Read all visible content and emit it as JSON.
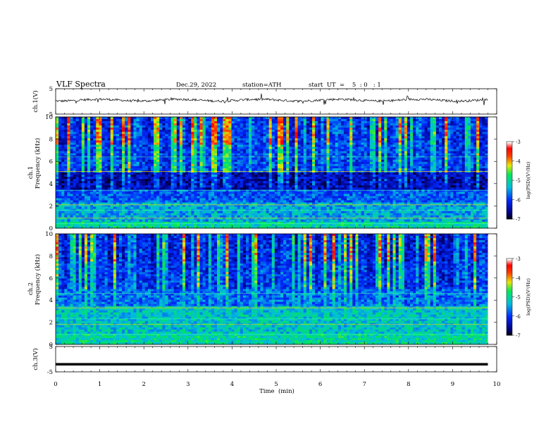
{
  "header": {
    "title": "VLF  Spectra",
    "date": "Dec.29, 2022",
    "station": "station=ATH",
    "start": "start  UT  =    5  : 0   : 1"
  },
  "chart_data": [
    {
      "type": "line",
      "name": "ch1-waveform",
      "ylabel": "ch.1(V)",
      "ylim": [
        -5,
        5
      ],
      "yticks": [
        "5",
        "-5"
      ],
      "xlim": [
        0,
        10
      ],
      "description_level": 0.5
    },
    {
      "type": "heatmap",
      "name": "ch1-spectrogram",
      "ylabel": "ch.1\nFrequency  (kHz)",
      "ylabel_line1": "ch.1",
      "ylabel_line2": "Frequency  (kHz)",
      "ylim": [
        0,
        10
      ],
      "yticks": [
        "0",
        "2",
        "4",
        "6",
        "8",
        "10"
      ],
      "xlim": [
        0,
        10
      ],
      "data_end_min": 9.8
    },
    {
      "type": "heatmap",
      "name": "ch2-spectrogram",
      "ylabel_line1": "ch.2",
      "ylabel_line2": "Frequency  (kHz)",
      "ylim": [
        0,
        10
      ],
      "yticks": [
        "0",
        "2",
        "4",
        "6",
        "8",
        "10"
      ],
      "xlim": [
        0,
        10
      ],
      "data_end_min": 9.8
    },
    {
      "type": "line",
      "name": "ch3-waveform",
      "ylabel": "ch.3(V)",
      "ylim": [
        -5,
        5
      ],
      "yticks": [
        "5",
        "-5"
      ],
      "xlim": [
        0,
        10
      ],
      "level": -2
    }
  ],
  "x_axis": {
    "label": "Time  (min)",
    "ticks": [
      "0",
      "1",
      "2",
      "3",
      "4",
      "5",
      "6",
      "7",
      "8",
      "9",
      "10"
    ]
  },
  "colorbar": {
    "label": "log(PSD)(V²/Hz)",
    "ticks": [
      "-3",
      "-4",
      "-5",
      "-6",
      "-7"
    ],
    "colors": [
      "#ffffff",
      "#ff0000",
      "#ffff00",
      "#00ff00",
      "#00c8c8",
      "#0064ff",
      "#0000a0",
      "#000000"
    ]
  }
}
